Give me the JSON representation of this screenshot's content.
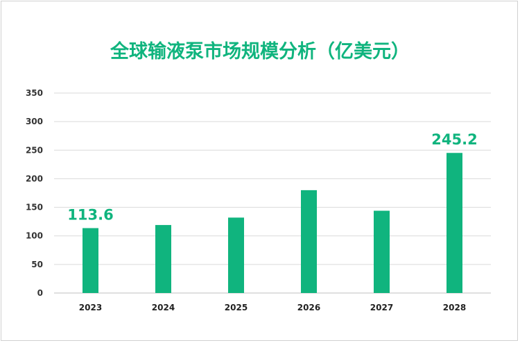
{
  "chart_data": {
    "type": "bar",
    "title": "全球输液泵市场规模分析（亿美元）",
    "categories": [
      "2023",
      "2024",
      "2025",
      "2026",
      "2027",
      "2028"
    ],
    "values": [
      113.6,
      119,
      132,
      180,
      144,
      245.2
    ],
    "data_labels": {
      "2023": "113.6",
      "2028": "245.2"
    },
    "ylim": [
      0,
      350
    ],
    "yticks": [
      0,
      50,
      100,
      150,
      200,
      250,
      300,
      350
    ],
    "grid": true,
    "bar_color": "#10b47e",
    "label_color": "#10b47e"
  }
}
